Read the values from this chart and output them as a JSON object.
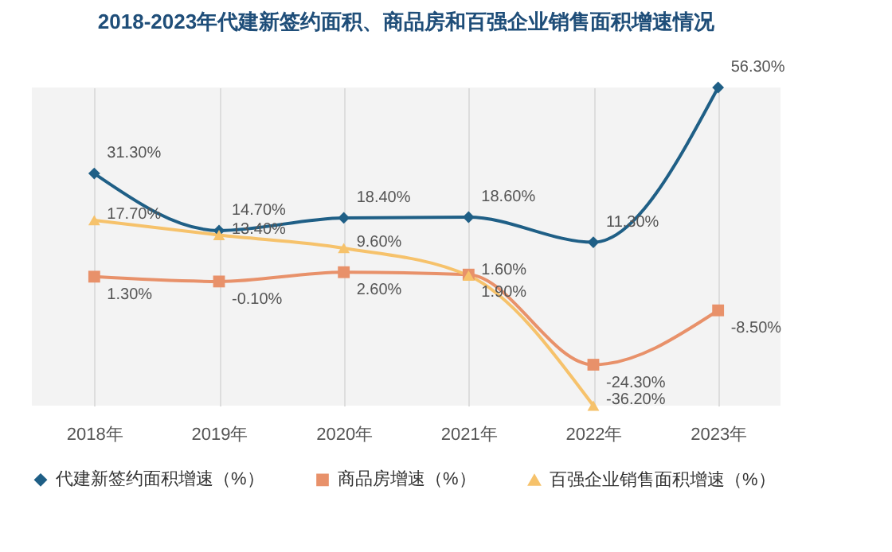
{
  "chart_data": {
    "type": "line",
    "title": "2018-2023年代建新签约面积、商品房和百强企业销售面积增速情况",
    "categories": [
      "2018年",
      "2019年",
      "2020年",
      "2021年",
      "2022年",
      "2023年"
    ],
    "series": [
      {
        "name": "代建新签约面积增速（%）",
        "color": "#1f5f86",
        "marker": "diamond",
        "values": [
          31.3,
          14.7,
          18.4,
          18.6,
          11.3,
          56.3
        ],
        "value_labels": [
          "31.30%",
          "14.70%",
          "18.40%",
          "18.60%",
          "11.30%",
          "56.30%"
        ]
      },
      {
        "name": "商品房增速（%）",
        "color": "#e8916a",
        "marker": "square",
        "values": [
          1.3,
          -0.1,
          2.6,
          1.9,
          -24.3,
          -8.5
        ],
        "value_labels": [
          "1.30%",
          "-0.10%",
          "2.60%",
          "1.90%",
          "-24.30%",
          "-8.50%"
        ]
      },
      {
        "name": "百强企业销售面积增速（%）",
        "color": "#f6c26b",
        "marker": "triangle",
        "values": [
          17.7,
          13.4,
          9.6,
          1.6,
          -36.2,
          null
        ],
        "value_labels": [
          "17.70%",
          "13.40%",
          "9.60%",
          "1.60%",
          "-36.20%",
          null
        ]
      }
    ],
    "grid": "x",
    "legend": "bottom"
  }
}
